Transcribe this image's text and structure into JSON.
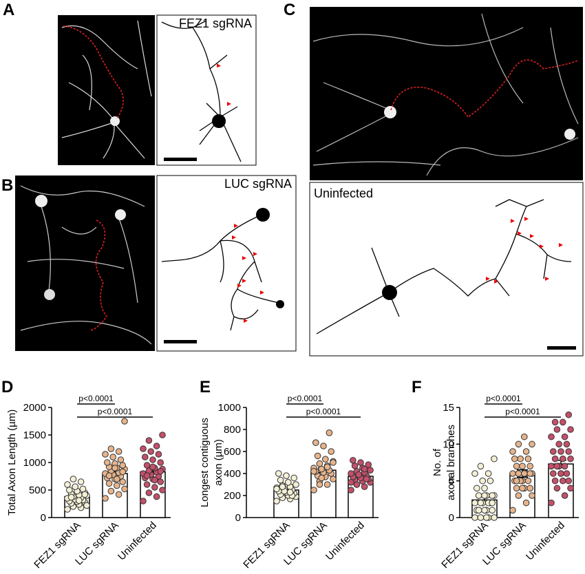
{
  "panel_labels": [
    "A",
    "B",
    "C",
    "D",
    "E",
    "F"
  ],
  "image_labels": [
    "FEZ1 sgRNA",
    "LUC sgRNA",
    "Uninfected"
  ],
  "chart_data": [
    {
      "type": "bar",
      "ylabel": [
        "Total Axon Length (µm)"
      ],
      "categories": [
        "FEZ1 sgRNA",
        "LUC sgRNA",
        "Uninfected"
      ],
      "values": [
        380,
        800,
        830
      ],
      "errors": [
        30,
        45,
        40
      ],
      "points": [
        [
          150,
          180,
          200,
          220,
          240,
          260,
          280,
          290,
          300,
          320,
          330,
          350,
          360,
          380,
          400,
          410,
          430,
          450,
          480,
          500,
          520,
          560,
          600,
          650,
          700,
          220,
          310,
          370,
          420
        ],
        [
          350,
          420,
          480,
          520,
          580,
          620,
          650,
          700,
          720,
          750,
          780,
          800,
          820,
          850,
          880,
          900,
          920,
          950,
          980,
          1000,
          1050,
          1100,
          1150,
          1200,
          1250,
          1750,
          700,
          760,
          830,
          900
        ],
        [
          300,
          380,
          450,
          500,
          550,
          600,
          650,
          700,
          720,
          750,
          780,
          800,
          830,
          850,
          880,
          900,
          950,
          1000,
          1050,
          1100,
          1150,
          1200,
          1250,
          1300,
          1400,
          1500,
          680,
          760,
          840,
          920
        ]
      ],
      "point_colors": [
        "#f4f0d6",
        "#e6b48c",
        "#c4506a"
      ],
      "ylim": [
        0,
        2000
      ],
      "yticks": [
        0,
        500,
        1000,
        1500,
        2000
      ],
      "annotations": [
        {
          "label": "p<0.0001",
          "groups": [
            0,
            1
          ]
        },
        {
          "label": "p<0.0001",
          "groups": [
            0,
            2
          ]
        }
      ]
    },
    {
      "type": "bar",
      "ylabel": [
        "Longest contiguous",
        "axon (µm)"
      ],
      "categories": [
        "FEZ1 sgRNA",
        "LUC sgRNA",
        "Uninfected"
      ],
      "values": [
        250,
        430,
        375
      ],
      "errors": [
        15,
        22,
        15
      ],
      "points": [
        [
          150,
          170,
          180,
          190,
          200,
          210,
          220,
          230,
          240,
          250,
          260,
          270,
          280,
          290,
          300,
          320,
          340,
          360,
          380,
          400,
          200,
          240,
          260,
          230,
          280
        ],
        [
          250,
          300,
          330,
          350,
          370,
          380,
          400,
          410,
          420,
          430,
          440,
          450,
          470,
          490,
          510,
          530,
          560,
          600,
          650,
          680,
          770,
          360,
          420,
          460,
          300,
          500
        ],
        [
          250,
          280,
          300,
          320,
          330,
          340,
          350,
          360,
          370,
          380,
          390,
          400,
          410,
          420,
          430,
          450,
          470,
          480,
          500,
          520,
          350,
          390,
          320,
          440,
          300
        ]
      ],
      "point_colors": [
        "#f4f0d6",
        "#e6b48c",
        "#c4506a"
      ],
      "ylim": [
        0,
        1000
      ],
      "yticks": [
        0,
        200,
        400,
        600,
        800,
        1000
      ],
      "annotations": [
        {
          "label": "p<0.0001",
          "groups": [
            0,
            1
          ]
        },
        {
          "label": "p<0.0001",
          "groups": [
            0,
            2
          ]
        }
      ]
    },
    {
      "type": "bar",
      "ylabel": [
        "No. of",
        "axonal branches"
      ],
      "categories": [
        "FEZ1 sgRNA",
        "LUC sgRNA",
        "Uninfected"
      ],
      "values": [
        2.4,
        6,
        7.3
      ],
      "errors": [
        0.4,
        0.5,
        0.5
      ],
      "points": [
        [
          0,
          0,
          0,
          0,
          1,
          1,
          1,
          1,
          1,
          2,
          2,
          2,
          2,
          2,
          3,
          3,
          3,
          3,
          4,
          4,
          5,
          5,
          6,
          6,
          7,
          8,
          0,
          1,
          2,
          3
        ],
        [
          1,
          2,
          3,
          3,
          4,
          4,
          4,
          5,
          5,
          5,
          5,
          6,
          6,
          6,
          6,
          6,
          7,
          7,
          7,
          8,
          8,
          8,
          9,
          9,
          10,
          10,
          11,
          5,
          6,
          4
        ],
        [
          2,
          3,
          4,
          4,
          5,
          5,
          5,
          6,
          6,
          6,
          7,
          7,
          7,
          7,
          8,
          8,
          8,
          9,
          9,
          9,
          10,
          10,
          11,
          11,
          12,
          12,
          13,
          13,
          14,
          6
        ]
      ],
      "point_colors": [
        "#f4f0d6",
        "#e6b48c",
        "#c4506a"
      ],
      "ylim": [
        0,
        15
      ],
      "yticks": [
        0,
        5,
        10,
        15
      ],
      "annotations": [
        {
          "label": "p<0.0001",
          "groups": [
            0,
            1
          ]
        },
        {
          "label": "p<0.0001",
          "groups": [
            0,
            2
          ]
        }
      ]
    }
  ]
}
